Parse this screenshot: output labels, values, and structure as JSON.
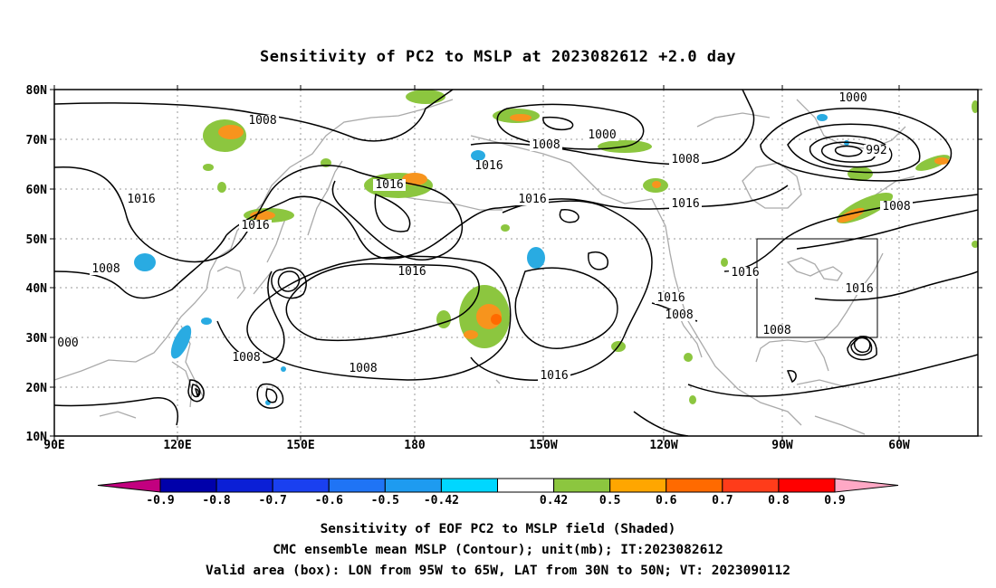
{
  "title": "Sensitivity of PC2 to MSLP at 2023082612 +2.0 day",
  "map": {
    "lat_labels": [
      "80N",
      "70N",
      "60N",
      "50N",
      "40N",
      "30N",
      "20N",
      "10N"
    ],
    "lon_labels": [
      "90E",
      "120E",
      "150E",
      "180",
      "150W",
      "120W",
      "90W",
      "60W"
    ],
    "lon_range": [
      "90E",
      "45W"
    ],
    "lat_range": [
      "10N",
      "80N"
    ],
    "grid": "dotted",
    "colors": {
      "coast": "#aaaaaa",
      "contour": "#000000",
      "pos_042_05": "#8cc63f",
      "pos_05_06": "#f7941d",
      "pos_06_07": "#ff6a00",
      "neg_05_042": "#29abe2"
    },
    "contour_labels": [
      {
        "text": "1008"
      },
      {
        "text": "1016"
      },
      {
        "text": "1016"
      },
      {
        "text": "1008"
      },
      {
        "text": "1008"
      },
      {
        "text": "1016"
      },
      {
        "text": "1008"
      },
      {
        "text": "1016"
      },
      {
        "text": "1016"
      },
      {
        "text": "1000"
      },
      {
        "text": "1008"
      },
      {
        "text": "1016"
      },
      {
        "text": "1008"
      },
      {
        "text": "1000"
      },
      {
        "text": "992"
      },
      {
        "text": "1008"
      },
      {
        "text": "1016"
      },
      {
        "text": "1016"
      },
      {
        "text": "1008"
      },
      {
        "text": "1016"
      },
      {
        "text": "1008"
      },
      {
        "text": "1016"
      },
      {
        "text": "000"
      },
      {
        "text": "1016"
      }
    ],
    "valid_box": {
      "lon": [
        "95W",
        "65W"
      ],
      "lat": [
        "30N",
        "50N"
      ]
    }
  },
  "colorbar": {
    "labels": [
      "-0.9",
      "-0.8",
      "-0.7",
      "-0.6",
      "-0.5",
      "-0.42",
      "0.42",
      "0.5",
      "0.6",
      "0.7",
      "0.8",
      "0.9"
    ],
    "colors": [
      "#c2007f",
      "#0000aa",
      "#0b1fd6",
      "#1a40f0",
      "#1f74f5",
      "#1e9bf0",
      "#00d7ff",
      "#ffffff",
      "#8cc63f",
      "#ffa600",
      "#ff6a00",
      "#ff3c1a",
      "#ff0000",
      "#ffa8c5"
    ]
  },
  "captions": {
    "line1": "Sensitivity of EOF PC2 to MSLP field (Shaded)",
    "line2": "CMC ensemble mean MSLP (Contour); unit(mb); IT:2023082612",
    "line3": "Valid area (box): LON from 95W to 65W, LAT from 30N to 50N; VT: 2023090112"
  }
}
